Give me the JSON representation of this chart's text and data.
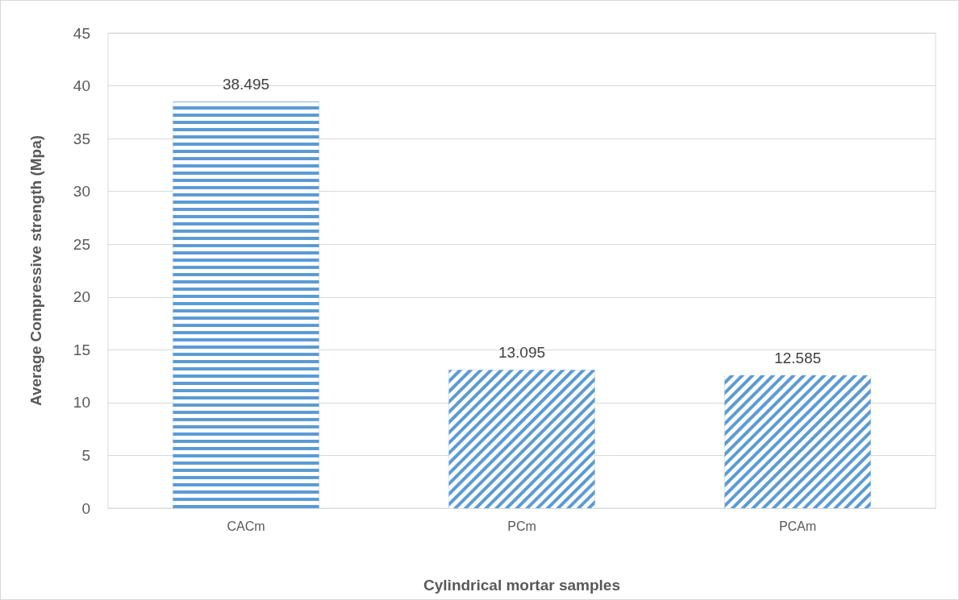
{
  "chart_data": {
    "type": "bar",
    "xlabel": "Cylindrical mortar samples",
    "ylabel": "Average Compressive strength (Mpa)",
    "categories": [
      "CACm",
      "PCm",
      "PCAm"
    ],
    "values": [
      38.495,
      13.095,
      12.585
    ],
    "color": "#5b9bd5",
    "ylim": [
      0,
      45
    ],
    "yticks": [
      0,
      5,
      10,
      15,
      20,
      25,
      30,
      35,
      40,
      45
    ],
    "grid": "y",
    "data_labels": true
  }
}
